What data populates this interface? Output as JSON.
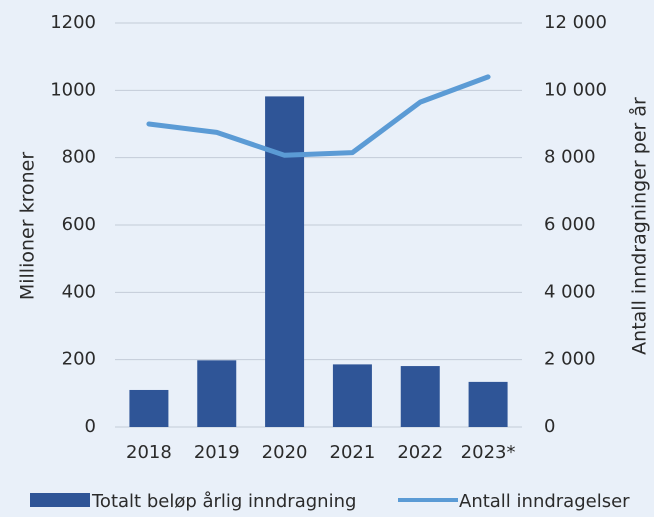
{
  "chart_data": {
    "type": "bar",
    "categories": [
      "2018",
      "2019",
      "2020",
      "2021",
      "2022",
      "2023*"
    ],
    "series": [
      {
        "name": "Totalt beløp årlig inndragning",
        "type": "bar",
        "axis": "left",
        "color": "#2f5597",
        "values": [
          110,
          198,
          982,
          186,
          181,
          134
        ]
      },
      {
        "name": "Antall inndragelser",
        "type": "line",
        "axis": "right",
        "color": "#5b9bd5",
        "values": [
          9000,
          8750,
          8070,
          8150,
          9650,
          10400
        ]
      }
    ],
    "ylabel_left": "Millioner kroner",
    "ylabel_right": "Antall inndragninger per år",
    "y_left_range": [
      0,
      1200
    ],
    "y_right_range": [
      0,
      12000
    ],
    "y_left_ticks": [
      "0",
      "200",
      "400",
      "600",
      "800",
      "1000",
      "1200"
    ],
    "y_right_ticks": [
      "0",
      "2 000",
      "4 000",
      "6 000",
      "8 000",
      "10 000",
      "12 000"
    ],
    "gridlines": true,
    "legend_position": "bottom"
  }
}
